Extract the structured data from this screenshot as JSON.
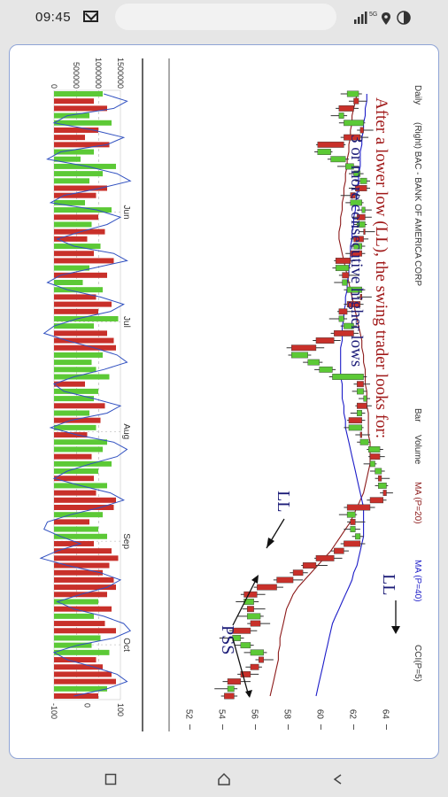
{
  "status_bar": {
    "time": "09:45",
    "network": "5G",
    "icons": [
      "mail-icon",
      "signal-icon",
      "location-icon",
      "battery-icon"
    ]
  },
  "nav_bar": {
    "icons": [
      "recent-apps-icon",
      "home-icon",
      "back-icon"
    ]
  },
  "chart_data": {
    "type": "candlestick",
    "orientation": "rotated-90-clockwise",
    "header": {
      "period": "Daily",
      "symbol": "(Right) BAC - BANK OF AMERICA CORP",
      "series_labels": [
        "Bar",
        "Volume",
        "MA (P=20)",
        "MA (P=40)",
        "CCI(P=5)"
      ]
    },
    "series_colors": {
      "up": "#5cc936",
      "down": "#c8302a",
      "ma20": "#8c1a1a",
      "ma40": "#1c1cc8",
      "cci": "#3050c0"
    },
    "price_axis": {
      "ticks": [
        "52",
        "54",
        "56",
        "58",
        "60",
        "62",
        "64"
      ],
      "ylim": [
        51,
        65
      ]
    },
    "volume_axis": {
      "ticks": [
        "0",
        "500000",
        "1000000",
        "1500000"
      ]
    },
    "cci_axis": {
      "ticks": [
        "-100",
        "0",
        "100"
      ]
    },
    "month_labels": [
      "Jun",
      "Jul",
      "Aug",
      "Sep",
      "Oct"
    ],
    "annotations": {
      "text_line1": "After a lower low (LL), the swing trader looks for:",
      "text_line2": "3 or more consecutive higher lows",
      "ll_label_1": "LL",
      "ll_label_2": "LL",
      "pss_label": "PSS"
    },
    "candles": [
      [
        61.6,
        62.5,
        61.2,
        62.3
      ],
      [
        62.3,
        62.8,
        61.7,
        62.0
      ],
      [
        62.0,
        62.3,
        60.9,
        61.1
      ],
      [
        61.1,
        61.6,
        60.6,
        61.4
      ],
      [
        61.4,
        62.7,
        61.1,
        62.6
      ],
      [
        62.6,
        63.2,
        62.2,
        62.4
      ],
      [
        62.4,
        62.9,
        61.2,
        61.4
      ],
      [
        61.4,
        61.5,
        59.7,
        59.8
      ],
      [
        59.8,
        60.7,
        59.6,
        60.6
      ],
      [
        60.6,
        61.7,
        60.4,
        61.5
      ],
      [
        61.5,
        62.3,
        61.0,
        62.0
      ],
      [
        62.0,
        62.6,
        61.7,
        62.4
      ],
      [
        62.4,
        63.0,
        62.1,
        62.8
      ],
      [
        62.8,
        63.0,
        61.7,
        62.1
      ],
      [
        62.1,
        62.4,
        61.2,
        61.8
      ],
      [
        61.8,
        62.6,
        61.5,
        62.5
      ],
      [
        62.5,
        63.1,
        62.2,
        62.7
      ],
      [
        62.7,
        63.1,
        61.9,
        62.2
      ],
      [
        62.2,
        62.8,
        62.0,
        62.7
      ],
      [
        62.7,
        63.3,
        62.3,
        62.6
      ],
      [
        62.6,
        62.9,
        61.8,
        62.0
      ],
      [
        62.0,
        62.7,
        61.8,
        62.5
      ],
      [
        62.5,
        62.7,
        61.5,
        61.8
      ],
      [
        61.8,
        62.1,
        60.8,
        60.9
      ],
      [
        60.9,
        61.8,
        60.7,
        61.7
      ],
      [
        61.7,
        62.3,
        61.1,
        61.3
      ],
      [
        61.3,
        61.8,
        60.8,
        61.6
      ],
      [
        61.6,
        62.7,
        61.4,
        62.5
      ],
      [
        62.5,
        63.1,
        62.2,
        62.4
      ],
      [
        62.4,
        62.6,
        61.4,
        61.6
      ],
      [
        61.6,
        61.9,
        61.0,
        61.1
      ],
      [
        61.1,
        61.6,
        60.5,
        61.4
      ],
      [
        61.4,
        62.2,
        61.2,
        62.0
      ],
      [
        62.0,
        62.3,
        60.6,
        60.8
      ],
      [
        60.8,
        61.2,
        59.5,
        59.7
      ],
      [
        59.7,
        60.2,
        57.9,
        58.2
      ],
      [
        58.2,
        59.4,
        58.0,
        59.2
      ],
      [
        59.2,
        60.1,
        58.9,
        59.9
      ],
      [
        59.9,
        60.9,
        59.6,
        60.7
      ],
      [
        60.7,
        62.8,
        60.5,
        62.6
      ],
      [
        62.6,
        63.0,
        62.0,
        62.2
      ],
      [
        62.2,
        62.8,
        61.9,
        62.6
      ],
      [
        62.6,
        63.0,
        62.3,
        62.8
      ],
      [
        62.8,
        63.1,
        62.1,
        62.2
      ],
      [
        62.2,
        62.7,
        61.8,
        62.5
      ],
      [
        62.5,
        62.7,
        61.6,
        61.7
      ],
      [
        61.7,
        62.6,
        61.4,
        62.5
      ],
      [
        62.5,
        63.0,
        62.1,
        62.4
      ],
      [
        62.4,
        63.0,
        62.2,
        62.9
      ],
      [
        62.9,
        63.8,
        62.8,
        63.6
      ],
      [
        63.6,
        63.9,
        62.9,
        63.0
      ],
      [
        63.0,
        63.4,
        62.6,
        63.3
      ],
      [
        63.3,
        63.9,
        63.0,
        63.7
      ],
      [
        63.7,
        64.2,
        63.3,
        63.5
      ],
      [
        63.5,
        64.1,
        63.3,
        64.0
      ],
      [
        64.0,
        64.4,
        63.6,
        63.8
      ],
      [
        63.8,
        64.0,
        62.8,
        63.0
      ],
      [
        63.0,
        63.3,
        61.4,
        61.6
      ],
      [
        61.6,
        62.2,
        61.1,
        62.1
      ],
      [
        62.1,
        62.7,
        61.6,
        61.8
      ],
      [
        61.8,
        62.4,
        61.4,
        62.1
      ],
      [
        62.1,
        62.6,
        61.9,
        62.4
      ],
      [
        62.4,
        62.7,
        61.2,
        61.4
      ],
      [
        61.4,
        61.7,
        60.6,
        60.8
      ],
      [
        60.8,
        61.3,
        59.6,
        59.7
      ],
      [
        59.7,
        60.4,
        58.8,
        58.9
      ],
      [
        58.9,
        59.2,
        58.1,
        58.3
      ],
      [
        58.3,
        58.9,
        57.1,
        57.3
      ],
      [
        57.3,
        57.7,
        55.9,
        56.1
      ],
      [
        56.1,
        56.6,
        55.1,
        55.3
      ],
      [
        55.3,
        56.2,
        54.8,
        55.9
      ],
      [
        55.9,
        56.6,
        55.2,
        55.5
      ],
      [
        55.5,
        56.5,
        54.9,
        56.3
      ],
      [
        56.3,
        56.9,
        55.5,
        55.7
      ],
      [
        55.7,
        56.1,
        54.4,
        54.6
      ],
      [
        54.6,
        55.3,
        53.8,
        55.1
      ],
      [
        55.1,
        55.9,
        54.7,
        55.7
      ],
      [
        55.7,
        56.7,
        55.3,
        56.5
      ],
      [
        56.5,
        57.1,
        56.0,
        56.2
      ],
      [
        56.2,
        56.4,
        55.4,
        55.7
      ],
      [
        55.7,
        56.2,
        54.9,
        55.1
      ],
      [
        55.1,
        55.7,
        54.0,
        54.3
      ],
      [
        54.3,
        54.9,
        53.5,
        54.7
      ],
      [
        54.7,
        54.9,
        53.9,
        54.1
      ]
    ],
    "ma20": [
      62.2,
      62.1,
      62.0,
      61.9,
      61.9,
      61.8,
      61.8,
      61.7,
      61.7,
      61.6,
      61.6,
      61.5,
      61.5,
      61.4,
      61.4,
      61.3,
      61.3,
      61.2,
      61.2,
      61.1,
      61.1,
      61.2,
      61.3,
      61.4,
      61.5,
      61.6,
      61.7,
      61.8,
      61.9,
      62.0,
      62.1,
      62.2,
      62.3,
      62.4,
      62.5,
      62.5,
      62.6,
      62.6,
      62.7,
      62.7,
      62.7,
      62.8,
      62.8,
      62.8,
      62.9,
      62.9,
      62.9,
      62.9,
      63.0,
      63.0,
      63.0,
      63.0,
      62.9,
      62.8,
      62.7,
      62.6,
      62.4,
      62.2,
      62.0,
      61.8,
      61.5,
      61.2,
      60.9,
      60.6,
      60.2,
      59.8,
      59.4,
      59.0,
      58.6,
      58.3,
      58.1,
      57.9,
      57.8,
      57.7,
      57.6,
      57.5,
      57.5,
      57.4,
      57.4,
      57.3,
      57.2,
      57.1,
      57.0,
      56.9
    ],
    "ma40": [
      62.8,
      62.8,
      62.7,
      62.7,
      62.6,
      62.6,
      62.5,
      62.5,
      62.4,
      62.4,
      62.4,
      62.3,
      62.3,
      62.2,
      62.2,
      62.1,
      62.1,
      62.0,
      62.0,
      61.9,
      61.9,
      61.8,
      61.8,
      61.8,
      61.7,
      61.7,
      61.6,
      61.6,
      61.5,
      61.5,
      61.4,
      61.4,
      61.3,
      61.3,
      61.3,
      61.2,
      61.2,
      61.2,
      61.2,
      61.2,
      61.3,
      61.3,
      61.3,
      61.4,
      61.4,
      61.5,
      61.5,
      61.6,
      61.7,
      61.8,
      61.9,
      62.0,
      62.1,
      62.2,
      62.3,
      62.4,
      62.5,
      62.6,
      62.6,
      62.6,
      62.6,
      62.6,
      62.5,
      62.4,
      62.3,
      62.2,
      62.0,
      61.9,
      61.7,
      61.5,
      61.3,
      61.1,
      60.9,
      60.7,
      60.6,
      60.5,
      60.4,
      60.3,
      60.2,
      60.1,
      60.0,
      59.9,
      59.8,
      59.7
    ],
    "volume": [
      1100000,
      900000,
      1200000,
      800000,
      1300000,
      1000000,
      700000,
      1250000,
      900000,
      600000,
      1400000,
      1100000,
      800000,
      1200000,
      950000,
      700000,
      1300000,
      1000000,
      850000,
      1150000,
      750000,
      1050000,
      900000,
      1350000,
      800000,
      1200000,
      650000,
      1100000,
      950000,
      1300000,
      1000000,
      1450000,
      900000,
      1200000,
      1350000,
      1400000,
      1100000,
      850000,
      950000,
      1250000,
      700000,
      1000000,
      900000,
      1150000,
      800000,
      1050000,
      950000,
      750000,
      1200000,
      1100000,
      850000,
      1300000,
      1000000,
      900000,
      1200000,
      950000,
      1400000,
      1350000,
      1100000,
      800000,
      1000000,
      1200000,
      900000,
      1300000,
      1450000,
      1250000,
      1100000,
      1350000,
      1400000,
      1200000,
      1000000,
      1300000,
      900000,
      1150000,
      1400000,
      1050000,
      850000,
      1250000,
      950000,
      1100000,
      1300000,
      1400000,
      1200000,
      1000000
    ],
    "cci": [
      50,
      120,
      80,
      -60,
      -100,
      20,
      110,
      60,
      -80,
      -120,
      0,
      90,
      130,
      40,
      -70,
      -110,
      30,
      100,
      60,
      -20,
      -90,
      -40,
      80,
      120,
      20,
      -80,
      -120,
      -60,
      40,
      110,
      70,
      -30,
      -100,
      -130,
      -60,
      20,
      90,
      120,
      50,
      -40,
      -100,
      -70,
      20,
      100,
      60,
      -50,
      -110,
      -30,
      80,
      120,
      90,
      10,
      -60,
      -100,
      -20,
      70,
      110,
      40,
      -50,
      -120,
      -130,
      -80,
      -20,
      -90,
      -140,
      -60,
      40,
      100,
      60,
      -20,
      -90,
      -40,
      50,
      110,
      130,
      80,
      -30,
      -100,
      -60,
      20,
      90,
      120,
      60,
      -40
    ]
  }
}
